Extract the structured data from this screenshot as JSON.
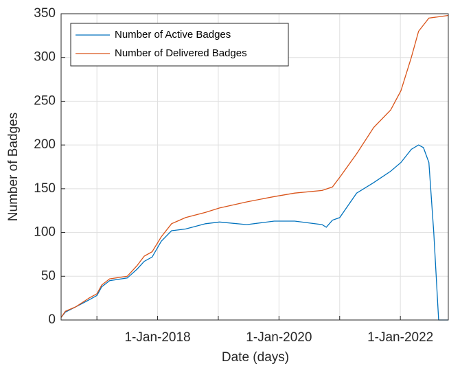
{
  "chart_data": {
    "type": "line",
    "xlabel": "Date (days)",
    "ylabel": "Number of Badges",
    "xlim": [
      2016.41,
      2022.79
    ],
    "xticks": [
      {
        "value": 2018,
        "label": "1-Jan-2018"
      },
      {
        "value": 2020,
        "label": "1-Jan-2020"
      },
      {
        "value": 2022,
        "label": "1-Jan-2022"
      }
    ],
    "xminorticks": [
      2017,
      2019,
      2021
    ],
    "ylim": [
      0,
      350
    ],
    "yticks": [
      0,
      50,
      100,
      150,
      200,
      250,
      300,
      350
    ],
    "grid": true,
    "legend": "upper left",
    "series": [
      {
        "name": "Number of Active Badges",
        "color": "#0072BD",
        "x": [
          2016.41,
          2016.48,
          2016.65,
          2016.87,
          2017.0,
          2017.08,
          2017.21,
          2017.5,
          2017.66,
          2017.78,
          2017.91,
          2018.06,
          2018.23,
          2018.46,
          2018.79,
          2019.02,
          2019.47,
          2019.92,
          2020.26,
          2020.71,
          2020.78,
          2020.88,
          2021.0,
          2021.28,
          2021.56,
          2021.84,
          2022.01,
          2022.18,
          2022.3,
          2022.38,
          2022.47,
          2022.55,
          2022.63,
          2022.79
        ],
        "values": [
          3,
          9,
          15,
          23,
          28,
          38,
          45,
          48,
          58,
          67,
          72,
          90,
          102,
          104,
          110,
          112,
          109,
          113,
          113,
          109,
          106,
          114,
          117,
          145,
          157,
          170,
          180,
          195,
          200,
          197,
          180,
          100,
          0,
          0
        ]
      },
      {
        "name": "Number of Delivered Badges",
        "color": "#D95319",
        "x": [
          2016.41,
          2016.48,
          2016.65,
          2016.87,
          2017.0,
          2017.08,
          2017.21,
          2017.5,
          2017.66,
          2017.78,
          2017.91,
          2018.06,
          2018.23,
          2018.46,
          2018.79,
          2019.02,
          2019.47,
          2019.92,
          2020.26,
          2020.71,
          2020.88,
          2021.0,
          2021.28,
          2021.56,
          2021.84,
          2022.01,
          2022.18,
          2022.3,
          2022.47,
          2022.79
        ],
        "values": [
          3,
          10,
          15,
          25,
          30,
          40,
          47,
          50,
          62,
          73,
          78,
          95,
          110,
          117,
          123,
          128,
          135,
          141,
          145,
          148,
          152,
          163,
          190,
          220,
          240,
          262,
          300,
          330,
          345,
          348
        ]
      }
    ]
  }
}
